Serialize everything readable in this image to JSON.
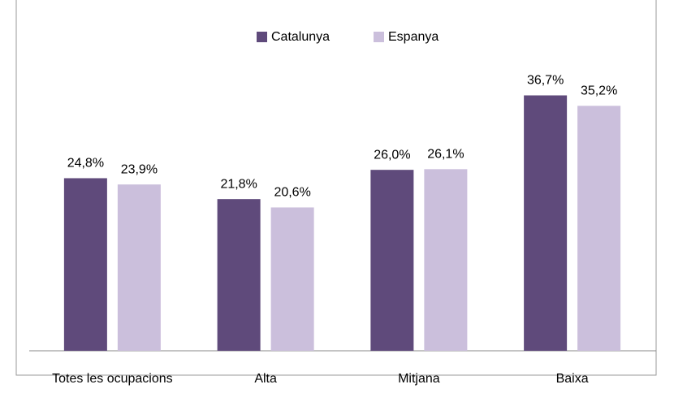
{
  "chart_data": {
    "type": "bar",
    "categories": [
      "Totes les ocupacions",
      "Alta",
      "Mitjana",
      "Baixa"
    ],
    "series": [
      {
        "name": "Catalunya",
        "color": "#5f4a7b",
        "values": [
          24.8,
          21.8,
          26.0,
          36.7
        ],
        "value_labels": [
          "24,8%",
          "21,8%",
          "26,0%",
          "36,7%"
        ]
      },
      {
        "name": "Espanya",
        "color": "#cbbfdc",
        "values": [
          23.9,
          20.6,
          26.1,
          35.2
        ],
        "value_labels": [
          "23,9%",
          "20,6%",
          "26,1%",
          "35,2%"
        ]
      }
    ],
    "legend": "top"
  }
}
